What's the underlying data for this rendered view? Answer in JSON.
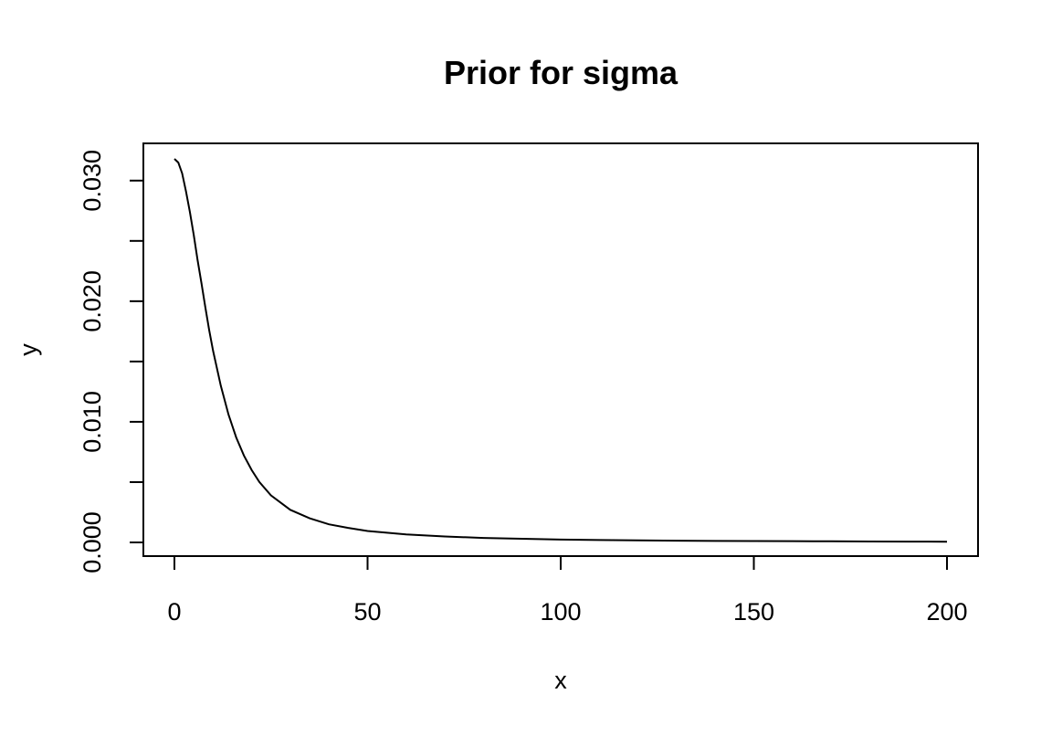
{
  "chart_data": {
    "type": "line",
    "title": "Prior for sigma",
    "xlabel": "x",
    "ylabel": "y",
    "xlim": [
      0,
      200
    ],
    "ylim": [
      0,
      0.0318
    ],
    "grid": false,
    "legend": "none",
    "x_ticks": [
      0,
      50,
      100,
      150,
      200
    ],
    "x_tick_labels": [
      "0",
      "50",
      "100",
      "150",
      "200"
    ],
    "y_ticks": [
      0.0,
      0.005,
      0.01,
      0.015,
      0.02,
      0.025,
      0.03
    ],
    "y_tick_labels": [
      "0.000",
      "",
      "0.010",
      "",
      "0.020",
      "",
      "0.030"
    ],
    "series": [
      {
        "color": "#000000",
        "x": [
          0,
          1,
          2,
          3,
          4,
          5,
          6,
          7,
          8,
          9,
          10,
          12,
          14,
          16,
          18,
          20,
          22,
          25,
          30,
          35,
          40,
          45,
          50,
          60,
          70,
          80,
          90,
          100,
          110,
          120,
          130,
          140,
          150,
          160,
          170,
          180,
          190,
          200
        ],
        "y": [
          0.0318,
          0.0315,
          0.0306,
          0.0291,
          0.0274,
          0.0255,
          0.0234,
          0.0215,
          0.0195,
          0.0176,
          0.0159,
          0.013,
          0.0106,
          0.0087,
          0.0072,
          0.006,
          0.005,
          0.0039,
          0.0027,
          0.002,
          0.0015,
          0.0012,
          0.00095,
          0.00066,
          0.00049,
          0.00037,
          0.0003,
          0.00024,
          0.0002,
          0.00017,
          0.00014,
          0.00012,
          0.00011,
          0.0001,
          9e-05,
          8e-05,
          7e-05,
          6e-05
        ]
      }
    ]
  }
}
